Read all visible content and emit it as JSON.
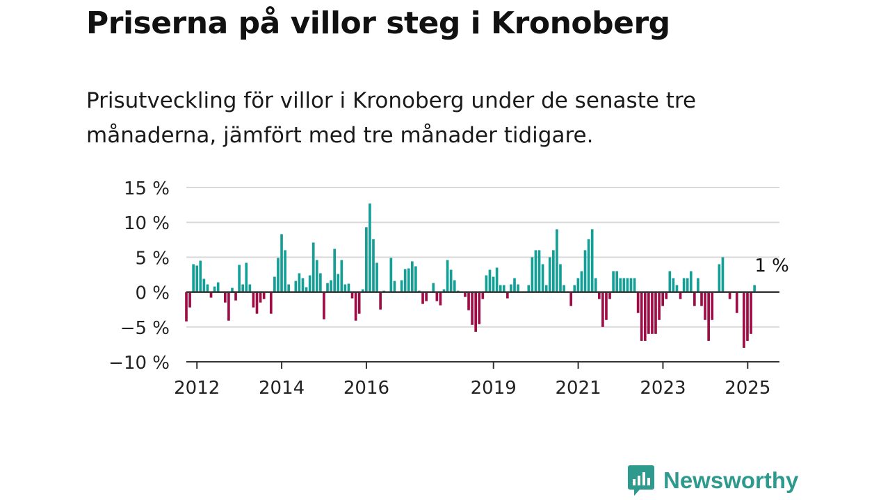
{
  "title": "Priserna på villor steg i Kronoberg",
  "subtitle": "Prisutveckling för villor i Kronoberg under de senaste tre månaderna, jämfört med tre månader tidigare.",
  "brand": {
    "name": "Newsworthy",
    "icon": "newsworthy-logo-icon",
    "color": "#2e9a8e"
  },
  "chart_data": {
    "type": "bar",
    "ylim": [
      -10,
      15
    ],
    "y_ticks": [
      15,
      10,
      5,
      0,
      -5,
      -10
    ],
    "y_tick_labels": [
      "15 %",
      "10 %",
      "5 %",
      "0 %",
      "−5 %",
      "−10 %"
    ],
    "x_start": 2011.75,
    "x_end": 2025.75,
    "x_step": 0.0833,
    "x_ticks": [
      2012,
      2014,
      2016,
      2019,
      2021,
      2023,
      2025
    ],
    "x_tick_labels": [
      "2012",
      "2014",
      "2016",
      "2019",
      "2021",
      "2023",
      "2025"
    ],
    "grid": true,
    "positive_color": "#139e96",
    "negative_color": "#9e0b45",
    "last_value_label": "1 %",
    "values": [
      -4.2,
      -2.2,
      4.0,
      3.8,
      4.5,
      1.9,
      1.1,
      -0.8,
      0.8,
      1.4,
      0.0,
      -1.5,
      -4.1,
      0.6,
      -1.2,
      3.9,
      1.1,
      4.2,
      1.1,
      -2.2,
      -3.1,
      -1.5,
      -1.0,
      0.0,
      -3.1,
      2.2,
      4.9,
      8.3,
      6.0,
      1.1,
      0.0,
      1.6,
      2.7,
      2.0,
      0.7,
      2.4,
      7.1,
      4.6,
      2.7,
      -3.9,
      1.3,
      1.7,
      6.2,
      2.6,
      4.6,
      1.1,
      1.2,
      -0.9,
      -4.1,
      -3.1,
      0.4,
      9.3,
      12.7,
      7.6,
      4.2,
      -2.5,
      0.2,
      0.0,
      4.9,
      1.6,
      0.0,
      1.7,
      3.3,
      3.4,
      4.4,
      3.7,
      0.2,
      -1.7,
      -1.3,
      0.0,
      1.3,
      -1.3,
      -1.9,
      0.4,
      4.6,
      3.2,
      1.7,
      0.2,
      0.0,
      -0.7,
      -2.6,
      -4.7,
      -5.7,
      -4.6,
      -1.0,
      2.4,
      3.2,
      2.2,
      3.5,
      1.0,
      1.0,
      -0.9,
      1.1,
      2.0,
      1.1,
      0.0,
      0.0,
      1.0,
      5.0,
      6.0,
      6.0,
      4.0,
      1.0,
      5.0,
      6.0,
      9.0,
      4.0,
      1.0,
      0.0,
      -2.0,
      1.0,
      2.0,
      3.0,
      6.0,
      7.6,
      9.0,
      2.0,
      -1.0,
      -5.0,
      -4.0,
      -1.0,
      3.0,
      3.0,
      2.0,
      2.0,
      2.0,
      2.0,
      2.0,
      -3.0,
      -7.0,
      -7.0,
      -6.0,
      -6.0,
      -6.0,
      -4.0,
      -2.0,
      -1.0,
      3.0,
      2.0,
      1.0,
      -1.0,
      2.0,
      2.0,
      3.0,
      -2.0,
      2.0,
      -2.0,
      -4.0,
      -7.0,
      -4.0,
      0.0,
      4.0,
      5.0,
      0.0,
      -1.0,
      0.0,
      -3.0,
      0.0,
      -8.0,
      -7.0,
      -6.0,
      1.0
    ]
  }
}
